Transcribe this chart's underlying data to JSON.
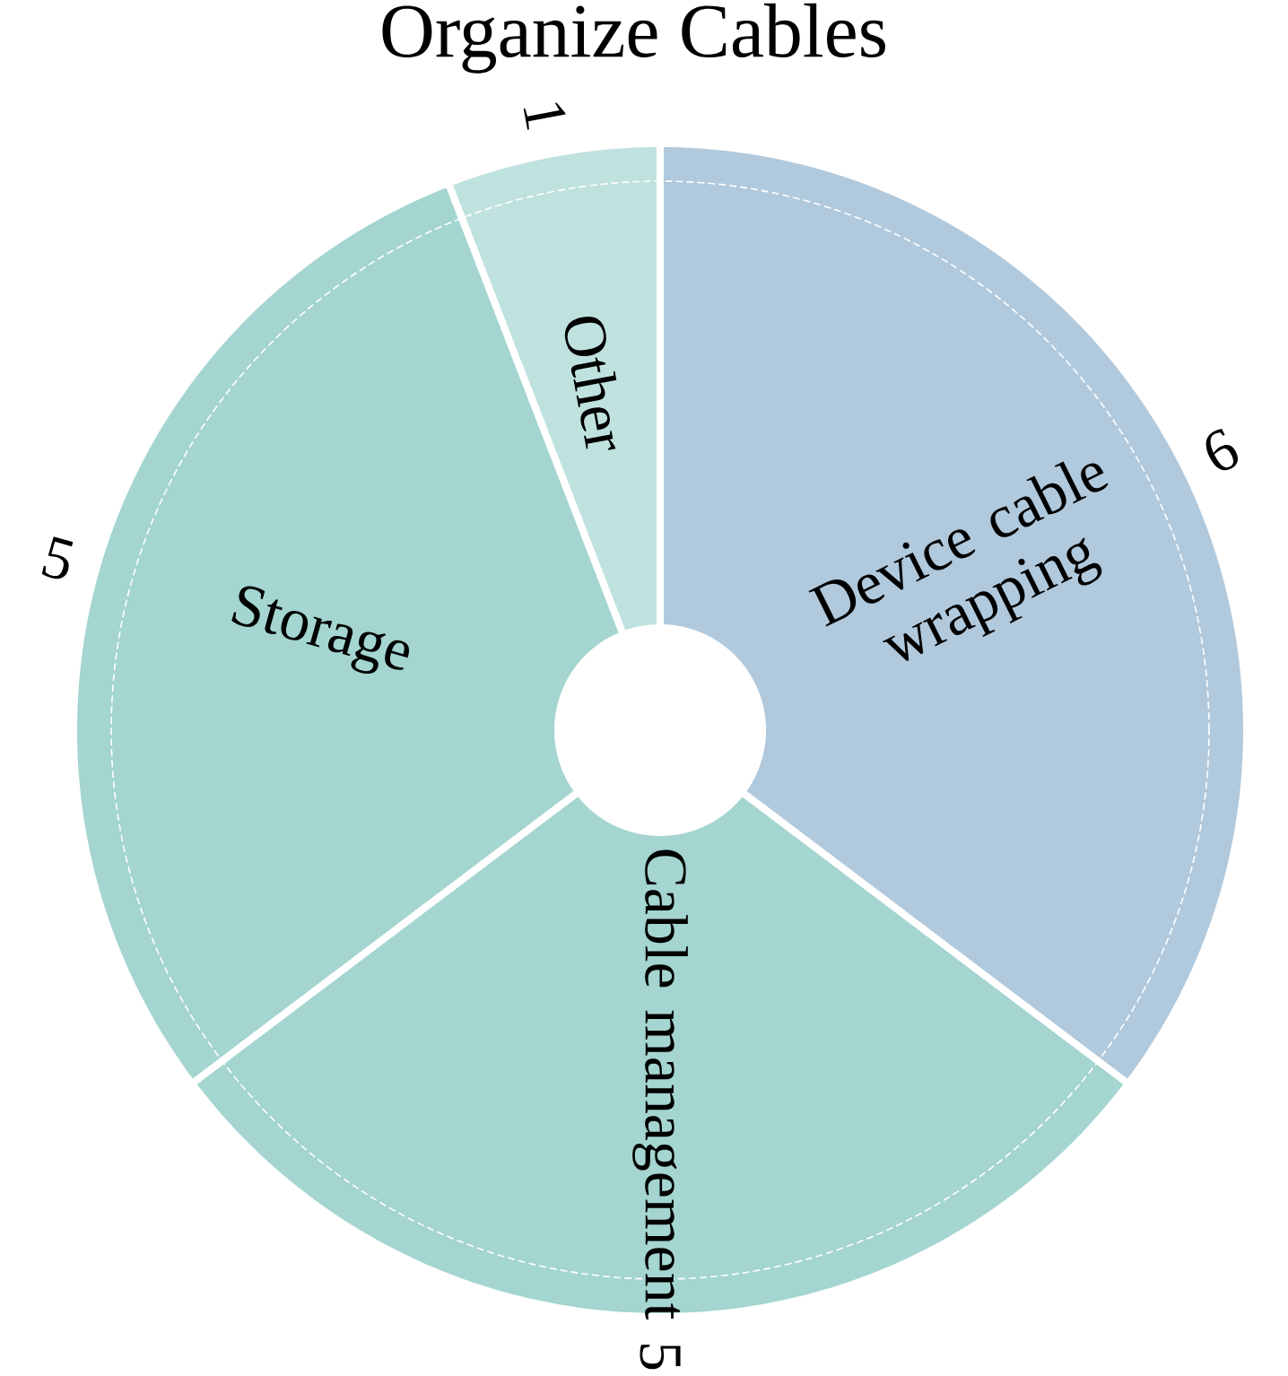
{
  "chart_data": {
    "type": "donut",
    "title": "Organize Cables",
    "categories": [
      "Other",
      "Storage",
      "Cable management",
      "Device cable wrapping"
    ],
    "values": [
      1,
      5,
      5,
      6
    ],
    "colors": [
      "#c0e2df",
      "#a4d5d0",
      "#a4d5d0",
      "#b1c9dc"
    ],
    "data_labels": true
  }
}
